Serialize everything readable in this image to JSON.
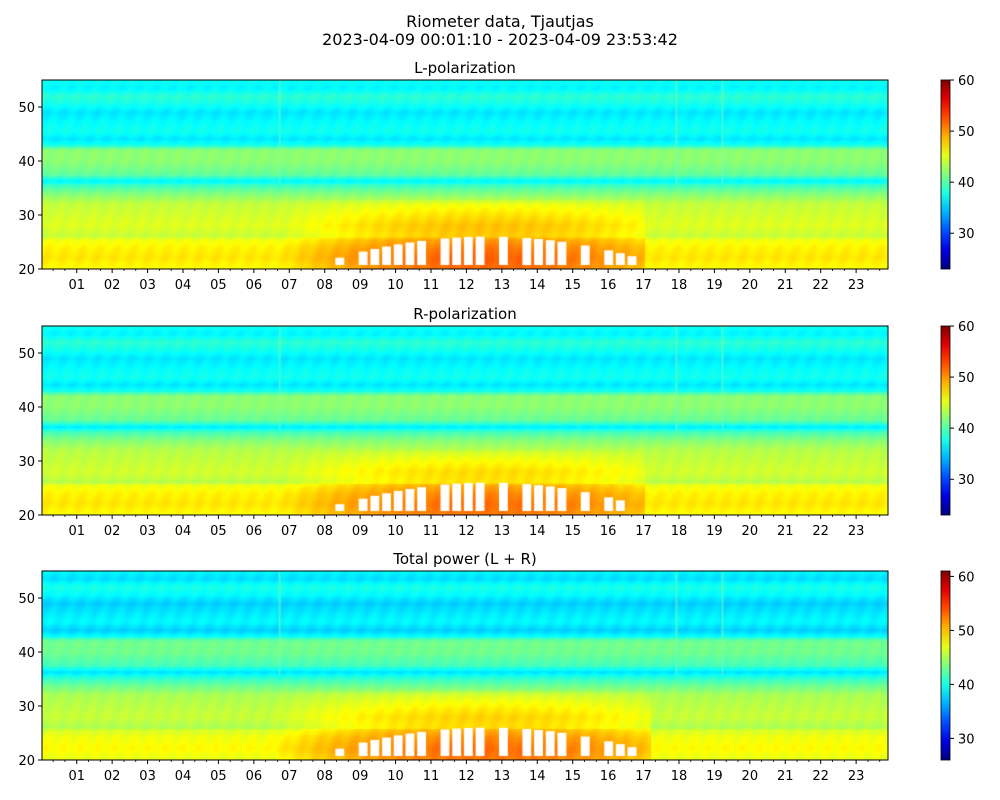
{
  "figure": {
    "title_line1": "Riometer data, Tjautjas",
    "title_line2": "2023-04-09 00:01:10 - 2023-04-09 23:53:42"
  },
  "chart_data": [
    {
      "type": "heatmap",
      "title": "L-polarization",
      "xlabel": "",
      "ylabel": "",
      "x_tick_labels": [
        "01",
        "02",
        "03",
        "04",
        "05",
        "06",
        "07",
        "08",
        "09",
        "10",
        "11",
        "12",
        "13",
        "14",
        "15",
        "16",
        "17",
        "18",
        "19",
        "20",
        "21",
        "22",
        "23"
      ],
      "x_range_hours": [
        0.02,
        23.9
      ],
      "y_ticks": [
        20,
        30,
        40,
        50
      ],
      "ylim": [
        20,
        55
      ],
      "colorbar": {
        "ticks": [
          30,
          40,
          50,
          60
        ],
        "range": [
          23,
          60
        ],
        "colormap": "jet"
      },
      "row_profile": [
        [
          20,
          46
        ],
        [
          22,
          47
        ],
        [
          24,
          46.5
        ],
        [
          25.5,
          45.5
        ],
        [
          26,
          44
        ],
        [
          28,
          45
        ],
        [
          30,
          44.5
        ],
        [
          32,
          44
        ],
        [
          34,
          41.5
        ],
        [
          35.5,
          39
        ],
        [
          36.2,
          36.5
        ],
        [
          37.5,
          40.5
        ],
        [
          40,
          42
        ],
        [
          42,
          42
        ],
        [
          43,
          37.5
        ],
        [
          44,
          36
        ],
        [
          45.5,
          37.5
        ],
        [
          47,
          37
        ],
        [
          49,
          36
        ],
        [
          50.5,
          37.5
        ],
        [
          52,
          38.5
        ],
        [
          53.5,
          36.5
        ],
        [
          55,
          37.5
        ]
      ],
      "enhancement": {
        "center_hour": 12.5,
        "peak_increase": 5.5,
        "span_hours": [
          5.5,
          17.0
        ],
        "max_altitude": 33
      },
      "saturated_hours": [
        8.3,
        16.8
      ],
      "vertical_streaks_hours": [
        6.7,
        17.9,
        19.2
      ]
    },
    {
      "type": "heatmap",
      "title": "R-polarization",
      "xlabel": "",
      "ylabel": "",
      "x_tick_labels": [
        "01",
        "02",
        "03",
        "04",
        "05",
        "06",
        "07",
        "08",
        "09",
        "10",
        "11",
        "12",
        "13",
        "14",
        "15",
        "16",
        "17",
        "18",
        "19",
        "20",
        "21",
        "22",
        "23"
      ],
      "x_range_hours": [
        0.02,
        23.9
      ],
      "y_ticks": [
        20,
        30,
        40,
        50
      ],
      "ylim": [
        20,
        55
      ],
      "colorbar": {
        "ticks": [
          30,
          40,
          50,
          60
        ],
        "range": [
          23,
          60
        ],
        "colormap": "jet"
      },
      "row_profile": [
        [
          20,
          46
        ],
        [
          22,
          47
        ],
        [
          24,
          46.5
        ],
        [
          25.5,
          45.5
        ],
        [
          26,
          43.5
        ],
        [
          28,
          44.5
        ],
        [
          30,
          44
        ],
        [
          32,
          43.5
        ],
        [
          34,
          41.5
        ],
        [
          35.5,
          39
        ],
        [
          36.2,
          36
        ],
        [
          37.5,
          40.5
        ],
        [
          40,
          42
        ],
        [
          42,
          42
        ],
        [
          43,
          37.5
        ],
        [
          44,
          36
        ],
        [
          45.5,
          37.5
        ],
        [
          47,
          37
        ],
        [
          49,
          36
        ],
        [
          50.5,
          37.5
        ],
        [
          52,
          38.5
        ],
        [
          53.5,
          36.5
        ],
        [
          55,
          37.5
        ]
      ],
      "enhancement": {
        "center_hour": 12.5,
        "peak_increase": 5.0,
        "span_hours": [
          5.5,
          17.0
        ],
        "max_altitude": 32
      },
      "saturated_hours": [
        8.3,
        16.5
      ],
      "vertical_streaks_hours": [
        6.7,
        17.9,
        19.2
      ]
    },
    {
      "type": "heatmap",
      "title": "Total power (L + R)",
      "xlabel": "",
      "ylabel": "",
      "x_tick_labels": [
        "01",
        "02",
        "03",
        "04",
        "05",
        "06",
        "07",
        "08",
        "09",
        "10",
        "11",
        "12",
        "13",
        "14",
        "15",
        "16",
        "17",
        "18",
        "19",
        "20",
        "21",
        "22",
        "23"
      ],
      "x_range_hours": [
        0.02,
        23.9
      ],
      "y_ticks": [
        20,
        30,
        40,
        50
      ],
      "ylim": [
        20,
        55
      ],
      "colorbar": {
        "ticks": [
          30,
          40,
          50,
          60
        ],
        "range": [
          26,
          61
        ],
        "colormap": "jet"
      },
      "row_profile": [
        [
          20,
          47
        ],
        [
          22,
          48
        ],
        [
          24,
          47.5
        ],
        [
          25.5,
          46.5
        ],
        [
          26,
          45
        ],
        [
          28,
          46
        ],
        [
          30,
          45.5
        ],
        [
          32,
          45
        ],
        [
          34,
          42.5
        ],
        [
          35.5,
          40
        ],
        [
          36.2,
          38
        ],
        [
          37.5,
          41.5
        ],
        [
          40,
          43
        ],
        [
          42,
          43
        ],
        [
          43,
          39
        ],
        [
          44,
          37.5
        ],
        [
          45.5,
          39
        ],
        [
          47,
          38.5
        ],
        [
          49,
          37.5
        ],
        [
          50.5,
          39
        ],
        [
          52,
          40
        ],
        [
          53.5,
          38
        ],
        [
          55,
          39
        ]
      ],
      "enhancement": {
        "center_hour": 12.5,
        "peak_increase": 5.5,
        "span_hours": [
          5.0,
          17.2
        ],
        "max_altitude": 33
      },
      "saturated_hours": [
        8.3,
        16.8
      ],
      "vertical_streaks_hours": [
        6.7,
        17.9,
        19.2
      ]
    }
  ]
}
